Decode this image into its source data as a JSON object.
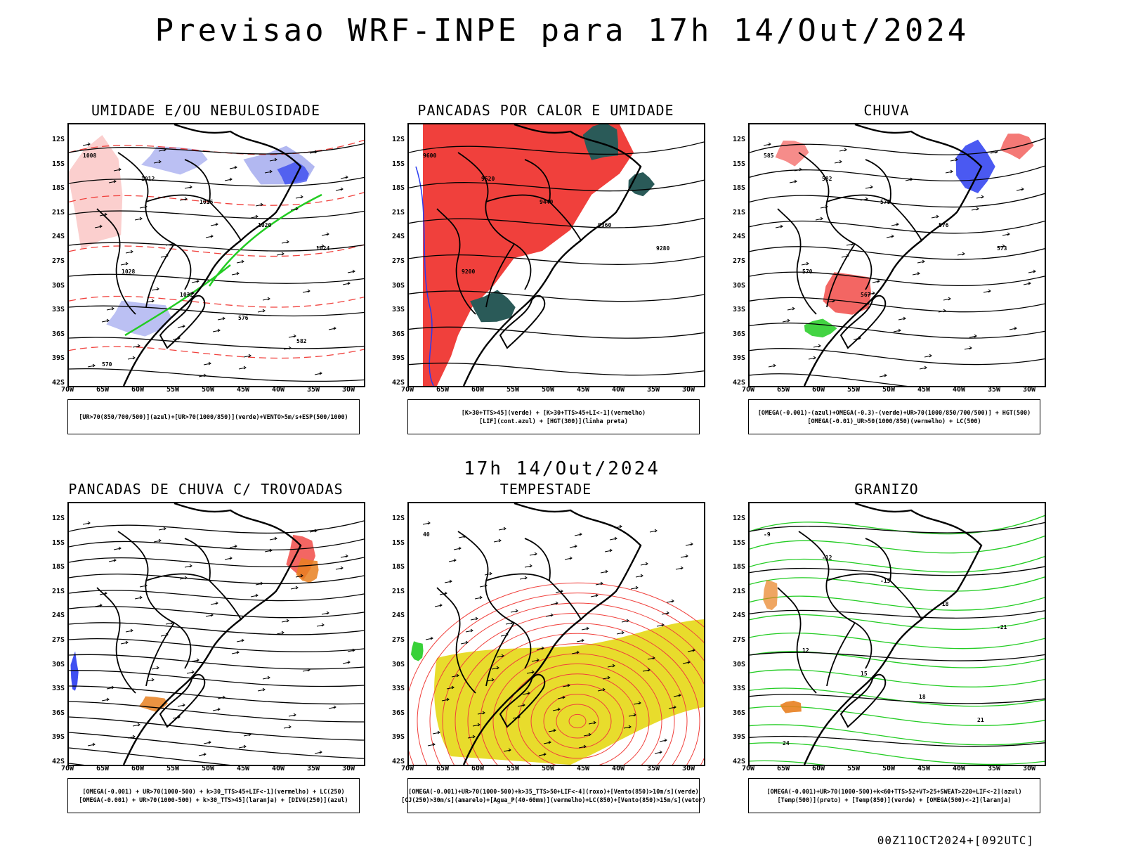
{
  "title": "Previsao WRF-INPE  para 17h 14/Out/2024",
  "subtitle": "17h 14/Out/2024",
  "footer": "00Z11OCT2024+[092UTC]",
  "lat_labels": [
    "12S",
    "15S",
    "18S",
    "21S",
    "24S",
    "27S",
    "30S",
    "33S",
    "36S",
    "39S",
    "42S"
  ],
  "lon_labels": [
    "70W",
    "65W",
    "60W",
    "55W",
    "50W",
    "45W",
    "40W",
    "35W",
    "30W"
  ],
  "colors": {
    "red": "#f0403c",
    "green": "#22cc22",
    "blue": "#2a3cf0",
    "lavender": "#aab0f0",
    "teal": "#2a5a58",
    "yellow": "#e8dc2c",
    "orange": "#e88020",
    "black": "#000000"
  },
  "panels": [
    {
      "id": "umidade",
      "title": "UMIDADE E/OU NEBULOSIDADE",
      "legend": [
        "[UR>70(850/700/500)](azul)+[UR>70(1000/850)](verde)+VENTO>5m/s+ESP(500/1000)"
      ],
      "contour_labels": [
        "1008",
        "1012",
        "1016",
        "1020",
        "1024",
        "1028",
        "1032",
        "576",
        "582",
        "570"
      ]
    },
    {
      "id": "pancadas-calor",
      "title": "PANCADAS POR CALOR E UMIDADE",
      "legend": [
        "[K>30+TTS>45](verde) + [K>30+TTS>45+LI<-1](vermelho)",
        "[LIF](cont.azul) + [HGT(300)](linha preta)"
      ],
      "contour_labels": [
        "9600",
        "9520",
        "9440",
        "9360",
        "9280",
        "9200"
      ]
    },
    {
      "id": "chuva",
      "title": "CHUVA",
      "legend": [
        "[OMEGA(-0.001)-(azul)+OMEGA(-0.3)-(verde)+UR>70(1000/850/700/500)] + HGT(500)",
        "[OMEGA(-0.01)_UR>50(1000/850)(vermelho) + LC(500)"
      ],
      "contour_labels": [
        "585",
        "582",
        "579",
        "576",
        "573",
        "570",
        "567"
      ]
    },
    {
      "id": "trovoadas",
      "title": "PANCADAS DE CHUVA C/ TROVOADAS",
      "legend": [
        "[OMEGA(-0.001) + UR>70(1000-500) + k>30_TTS>45+LIF<-1](vermelho) + LC(250)",
        "[OMEGA(-0.001) + UR>70(1000-500) + k>30_TTS>45](laranja) + [DIVG(250)](azul)"
      ],
      "contour_labels": []
    },
    {
      "id": "tempestade",
      "title": "TEMPESTADE",
      "legend": [
        "[OMEGA(-0.001)+UR>70(1000-500)+k>35_TTS>50+LIF<-4](roxo)+[Vento(850)>10m/s](verde)",
        "[CJ(250)>30m/s](amarelo)+[Agua_P(40-60mm)](vermelho)+LC(850)+[Vento(850)>15m/s](vetor)"
      ],
      "contour_labels": [
        "40"
      ]
    },
    {
      "id": "granizo",
      "title": "GRANIZO",
      "legend": [
        "[OMEGA(-0.001)+UR>70(1000-500)+k<60+TTS>52+VT>25+SWEAT>220+LIF<-2](azul)",
        "[Temp(500)](preto) + [Temp(850)](verde) + [OMEGA(500)<-2](laranja)"
      ],
      "contour_labels": [
        "-9",
        "-12",
        "-15",
        "-18",
        "-21",
        "12",
        "15",
        "18",
        "21",
        "24"
      ]
    }
  ]
}
